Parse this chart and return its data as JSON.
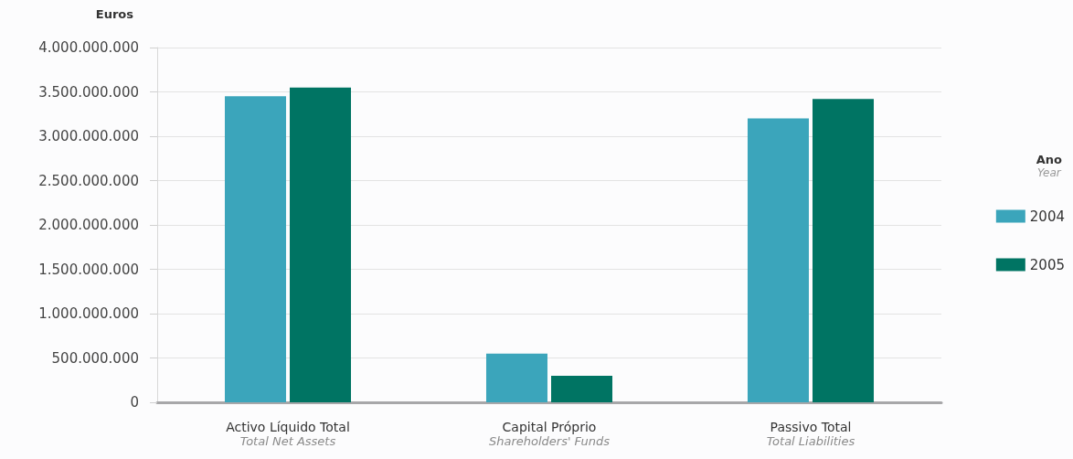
{
  "chart_data": {
    "type": "bar",
    "ylabel": "Euros",
    "legend_title": "Ano\nYear",
    "categories": [
      "Activo Líquido Total\nTotal Net Assets",
      "Capital Próprio\nShareholders' Funds",
      "Passivo Total\nTotal Liabilities"
    ],
    "series": [
      {
        "name": "2004",
        "color": "#3ba5bb",
        "values": [
          3450000000,
          550000000,
          3200000000
        ]
      },
      {
        "name": "2005",
        "color": "#007463",
        "values": [
          3550000000,
          300000000,
          3420000000
        ]
      }
    ],
    "ylim": [
      0,
      4000000000
    ],
    "yticks": [
      0,
      {
        "value": 500000000,
        "label": "500.000.000"
      },
      {
        "value": 1000000000,
        "label": "1.000.000.000"
      },
      {
        "value": 1500000000,
        "label": "1.500.000.000"
      },
      {
        "value": 2000000000,
        "label": "2.000.000.000"
      },
      {
        "value": 2500000000,
        "label": "2.500.000.000"
      },
      {
        "value": 3000000000,
        "label": "3.000.000.000"
      },
      {
        "value": 3500000000,
        "label": "3.500.000.000"
      },
      {
        "value": 4000000000,
        "label": "4.000.000.000"
      }
    ],
    "grid": "y",
    "legend": "right"
  }
}
